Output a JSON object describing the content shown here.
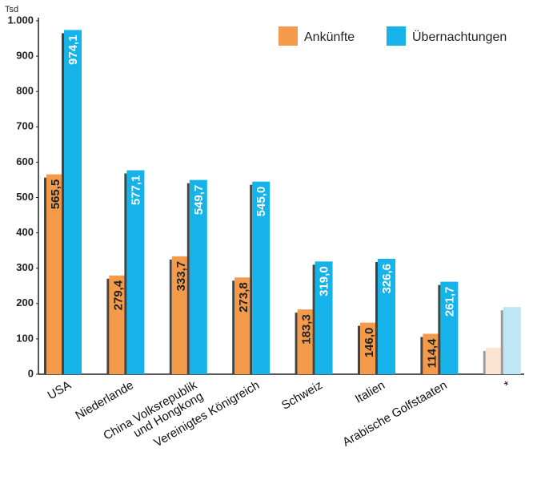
{
  "chart_data": {
    "type": "bar",
    "unit": "Tsd",
    "categories": [
      "USA",
      "Niederlande",
      "China Volksrepublik und Hongkong",
      "Vereinigtes Königreich",
      "Schweiz",
      "Italien",
      "Arabische Golfstaaten",
      "*"
    ],
    "series": [
      {
        "name": "Ankünfte",
        "color": "#f39b4b",
        "faded_color": "#fbe3cf",
        "values": [
          565.5,
          279.4,
          333.7,
          273.8,
          183.3,
          146.0,
          114.4,
          75
        ],
        "value_labels": [
          "565,5",
          "279,4",
          "333,7",
          "273,8",
          "183,3",
          "146,0",
          "114,4",
          null
        ]
      },
      {
        "name": "Übernachtungen",
        "color": "#16b2ea",
        "faded_color": "#bfe6f5",
        "values": [
          974.1,
          577.1,
          549.7,
          545.0,
          319.0,
          326.6,
          261.7,
          190
        ],
        "value_labels": [
          "974,1",
          "577,1",
          "549,7",
          "545,0",
          "319,0",
          "326,6",
          "261,7",
          null
        ]
      }
    ],
    "faded_categories": [
      7
    ],
    "ylim": [
      0,
      1000
    ],
    "yticks": [
      0,
      100,
      200,
      300,
      400,
      500,
      600,
      700,
      800,
      900,
      {
        "value": 1000,
        "label": "1.000"
      }
    ],
    "legend": "top-right",
    "grid": false
  }
}
